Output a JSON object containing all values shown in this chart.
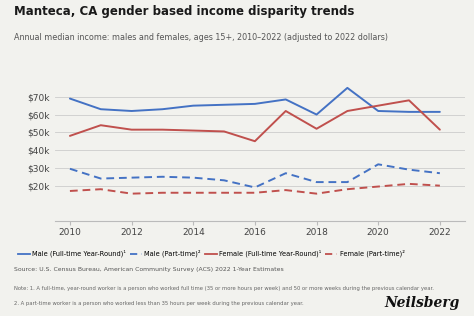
{
  "years": [
    2010,
    2011,
    2012,
    2013,
    2014,
    2015,
    2016,
    2017,
    2018,
    2019,
    2020,
    2021,
    2022
  ],
  "male_fulltime": [
    69000,
    63000,
    62000,
    63000,
    65000,
    65500,
    66000,
    68500,
    60000,
    75000,
    62000,
    61500,
    61500
  ],
  "male_parttime": [
    29500,
    24000,
    24500,
    25000,
    24500,
    23000,
    19000,
    27000,
    22000,
    22000,
    32000,
    29000,
    27000
  ],
  "female_fulltime": [
    48000,
    54000,
    51500,
    51500,
    51000,
    50500,
    45000,
    62000,
    52000,
    62000,
    65000,
    68000,
    51500
  ],
  "female_parttime": [
    17000,
    18000,
    15500,
    16000,
    16000,
    16000,
    16000,
    17500,
    15500,
    18000,
    19500,
    21000,
    20000
  ],
  "title": "Manteca, CA gender based income disparity trends",
  "subtitle": "Annual median income: males and females, ages 15+, 2010–2022 (adjusted to 2022 dollars)",
  "source": "Source: U.S. Census Bureau, American Community Survey (ACS) 2022 1-Year Estimates",
  "note1": "Note: 1. A full-time, year-round worker is a person who worked full time (35 or more hours per week) and 50 or more weeks during the previous calendar year.",
  "note2": "2. A part-time worker is a person who worked less than 35 hours per week during the previous calendar year.",
  "male_ft_color": "#4472c4",
  "male_pt_color": "#4472c4",
  "female_ft_color": "#c0504d",
  "female_pt_color": "#c0504d",
  "bg_color": "#f2f2ee",
  "grid_color": "#cccccc",
  "yticks": [
    20000,
    30000,
    40000,
    50000,
    60000,
    70000
  ],
  "xlim": [
    2009.5,
    2022.8
  ],
  "xticks": [
    2010,
    2012,
    2014,
    2016,
    2018,
    2020,
    2022
  ],
  "brand": "Neilsberg"
}
